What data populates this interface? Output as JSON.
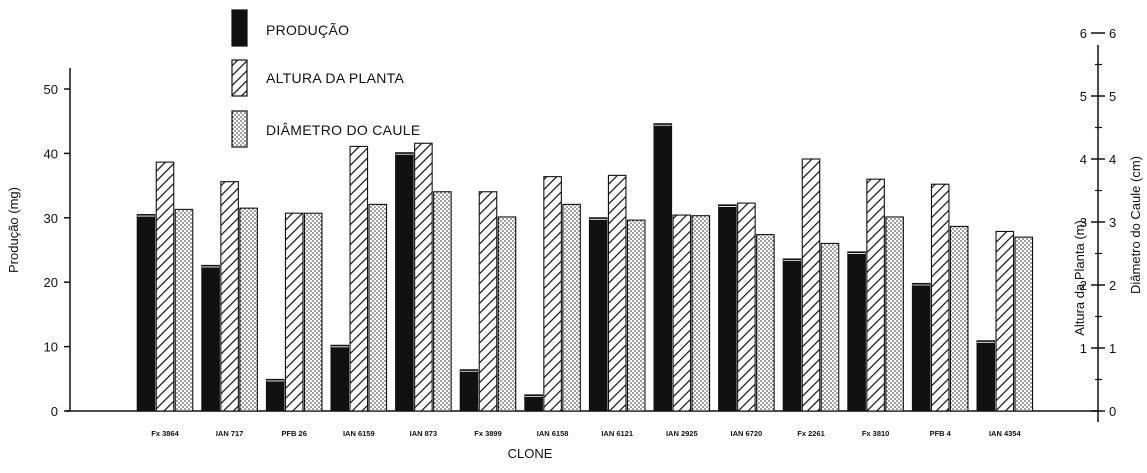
{
  "chart_data": {
    "type": "bar",
    "xlabel": "CLONE",
    "ylabel_left": "Produção (mg)",
    "ylabel_right_inner": "Altura da Planta (m)",
    "ylabel_right_outer": "Diâmetro do Caule (cm)",
    "ylim_left": [
      0,
      50
    ],
    "ylim_right": [
      0,
      6
    ],
    "left_ticks": [
      0,
      10,
      20,
      30,
      40,
      50
    ],
    "right_ticks": [
      0,
      1,
      2,
      3,
      4,
      5,
      6
    ],
    "legend_position": "top-center",
    "categories": [
      "Fx 3864",
      "IAN 717",
      "PFB 26",
      "IAN 6159",
      "IAN 873",
      "Fx 3899",
      "IAN 6158",
      "IAN 6121",
      "IAN 2925",
      "IAN 6720",
      "Fx 2261",
      "Fx 3810",
      "PFB 4",
      "IAN 4354"
    ],
    "series": [
      {
        "name": "PRODUÇÃO",
        "axis": "left",
        "pattern": "solid",
        "values": [
          30.5,
          22.6,
          4.9,
          10.2,
          40.1,
          6.4,
          2.5,
          30.0,
          44.6,
          32.0,
          23.6,
          24.7,
          19.8,
          10.9
        ]
      },
      {
        "name": "ALTURA DA PLANTA",
        "axis": "right",
        "pattern": "hatch",
        "values": [
          3.95,
          3.64,
          3.14,
          4.2,
          4.25,
          3.48,
          3.72,
          3.74,
          3.11,
          3.3,
          4.0,
          3.68,
          3.6,
          2.85
        ]
      },
      {
        "name": "DIÂMETRO DO CAULE",
        "axis": "right",
        "pattern": "dots",
        "values": [
          3.2,
          3.22,
          3.14,
          3.28,
          3.48,
          3.08,
          3.28,
          3.03,
          3.1,
          2.8,
          2.66,
          3.08,
          2.93,
          2.76
        ]
      }
    ]
  }
}
